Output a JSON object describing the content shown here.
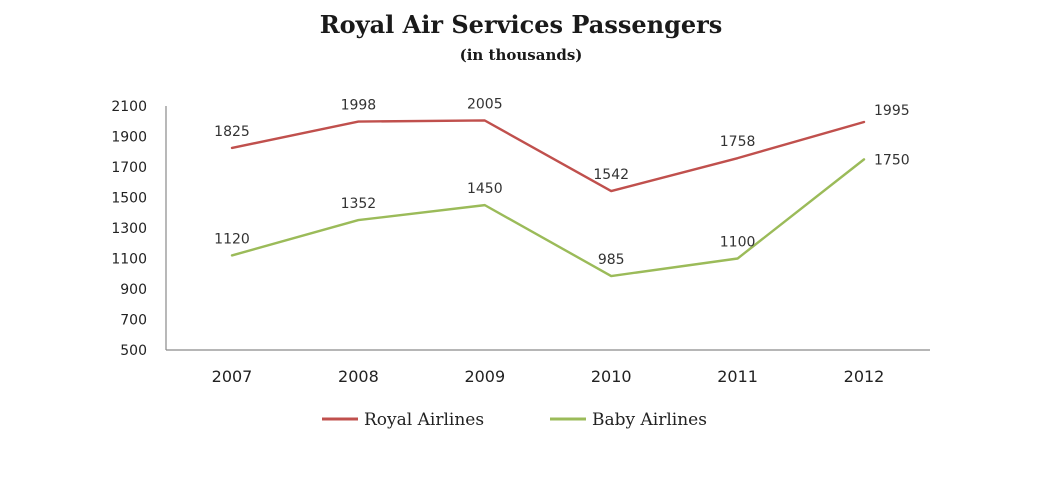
{
  "chart_data": {
    "type": "line",
    "title": "Royal Air Services Passengers",
    "subtitle": "(in thousands)",
    "categories": [
      "2007",
      "2008",
      "2009",
      "2010",
      "2011",
      "2012"
    ],
    "ylim": [
      500,
      2100
    ],
    "yticks": [
      2100,
      1900,
      1700,
      1500,
      1300,
      1100,
      900,
      700,
      500
    ],
    "grid": false,
    "legend_position": "bottom",
    "series": [
      {
        "name": "Royal Airlines",
        "color": "#c0504d",
        "values": [
          1825,
          1998,
          2005,
          1542,
          1758,
          1995
        ]
      },
      {
        "name": "Baby Airlines",
        "color": "#9bbb59",
        "values": [
          1120,
          1352,
          1450,
          985,
          1100,
          1750
        ]
      }
    ]
  }
}
